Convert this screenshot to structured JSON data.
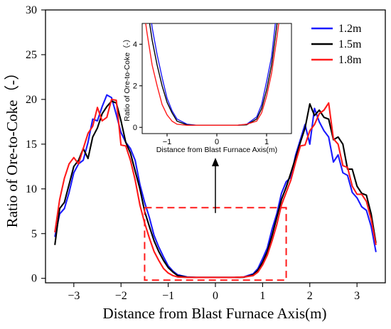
{
  "chart_data": {
    "type": "line",
    "xlabel": "Distance from Blast Furnace Axis(m)",
    "ylabel": "Ratio of Ore-to-Coke（-）",
    "xlim": [
      -3.6,
      3.6
    ],
    "ylim": [
      -0.5,
      30
    ],
    "xticks": [
      "−3",
      "−2",
      "−1",
      "0",
      "1",
      "2",
      "3"
    ],
    "yticks": [
      "0",
      "5",
      "10",
      "15",
      "20",
      "25",
      "30"
    ],
    "legend_position": "top-right",
    "grid": false,
    "series": [
      {
        "name": "1.2m",
        "color": "#1a1aff",
        "x": [
          -3.4,
          -3.3,
          -3.2,
          -3.1,
          -3.0,
          -2.9,
          -2.8,
          -2.7,
          -2.6,
          -2.5,
          -2.4,
          -2.3,
          -2.2,
          -2.1,
          -2.0,
          -1.9,
          -1.8,
          -1.7,
          -1.6,
          -1.5,
          -1.4,
          -1.3,
          -1.2,
          -1.1,
          -1.0,
          -0.9,
          -0.8,
          -0.6,
          -0.4,
          -0.2,
          0.0,
          0.2,
          0.4,
          0.6,
          0.8,
          0.9,
          1.0,
          1.1,
          1.2,
          1.3,
          1.4,
          1.5,
          1.6,
          1.7,
          1.8,
          1.9,
          2.0,
          2.1,
          2.2,
          2.3,
          2.4,
          2.5,
          2.6,
          2.7,
          2.8,
          2.9,
          3.0,
          3.1,
          3.2,
          3.3,
          3.4
        ],
        "y": [
          4.7,
          7.2,
          7.8,
          9.6,
          11.8,
          12.8,
          13.2,
          15.2,
          17.8,
          17.6,
          19.2,
          20.5,
          20.2,
          18.3,
          16.3,
          15.2,
          14.5,
          13.2,
          10.5,
          8.5,
          6.8,
          4.8,
          3.5,
          2.4,
          1.4,
          0.8,
          0.4,
          0.15,
          0.1,
          0.1,
          0.1,
          0.1,
          0.1,
          0.15,
          0.5,
          1.1,
          2.2,
          3.4,
          5.5,
          7.2,
          9.5,
          10.8,
          11.3,
          13.8,
          15.5,
          17.2,
          15.0,
          19.0,
          17.5,
          16.5,
          15.8,
          13.0,
          13.8,
          11.8,
          11.5,
          9.6,
          9.0,
          8.0,
          7.6,
          5.8,
          3.0
        ]
      },
      {
        "name": "1.5m",
        "color": "#000000",
        "x": [
          -3.4,
          -3.3,
          -3.2,
          -3.1,
          -3.0,
          -2.9,
          -2.8,
          -2.7,
          -2.6,
          -2.5,
          -2.4,
          -2.3,
          -2.2,
          -2.1,
          -2.0,
          -1.9,
          -1.8,
          -1.7,
          -1.6,
          -1.5,
          -1.4,
          -1.3,
          -1.2,
          -1.1,
          -1.0,
          -0.9,
          -0.8,
          -0.6,
          -0.4,
          -0.2,
          0.0,
          0.2,
          0.4,
          0.6,
          0.8,
          0.9,
          1.0,
          1.1,
          1.2,
          1.3,
          1.4,
          1.5,
          1.6,
          1.7,
          1.8,
          1.9,
          2.0,
          2.1,
          2.2,
          2.3,
          2.4,
          2.5,
          2.6,
          2.7,
          2.8,
          2.9,
          3.0,
          3.1,
          3.2,
          3.3,
          3.4
        ],
        "y": [
          3.8,
          7.8,
          8.5,
          10.5,
          12.5,
          13.2,
          14.5,
          13.4,
          15.8,
          16.8,
          18.4,
          19.2,
          19.8,
          19.6,
          17.6,
          15.2,
          14.0,
          12.0,
          10.0,
          7.5,
          5.8,
          4.2,
          3.0,
          2.0,
          1.2,
          0.7,
          0.3,
          0.12,
          0.1,
          0.1,
          0.1,
          0.1,
          0.1,
          0.12,
          0.4,
          0.9,
          1.8,
          3.0,
          4.8,
          6.8,
          8.8,
          10.2,
          11.8,
          13.5,
          15.2,
          16.8,
          19.5,
          18.2,
          18.8,
          18.0,
          17.8,
          15.5,
          15.8,
          15.0,
          12.2,
          12.2,
          10.3,
          9.5,
          9.3,
          7.2,
          4.0
        ]
      },
      {
        "name": "1.8m",
        "color": "#ff1a1a",
        "x": [
          -3.4,
          -3.3,
          -3.2,
          -3.1,
          -3.0,
          -2.9,
          -2.8,
          -2.7,
          -2.6,
          -2.5,
          -2.4,
          -2.3,
          -2.2,
          -2.1,
          -2.0,
          -1.9,
          -1.8,
          -1.7,
          -1.6,
          -1.5,
          -1.4,
          -1.3,
          -1.2,
          -1.1,
          -1.0,
          -0.9,
          -0.8,
          -0.6,
          -0.4,
          -0.2,
          0.0,
          0.2,
          0.4,
          0.6,
          0.8,
          0.9,
          1.0,
          1.1,
          1.2,
          1.3,
          1.4,
          1.5,
          1.6,
          1.7,
          1.8,
          1.9,
          2.0,
          2.1,
          2.2,
          2.3,
          2.4,
          2.5,
          2.6,
          2.7,
          2.8,
          2.9,
          3.0,
          3.1,
          3.2,
          3.3,
          3.4
        ],
        "y": [
          5.2,
          8.8,
          11.2,
          12.8,
          13.5,
          12.8,
          14.5,
          16.2,
          17.0,
          19.1,
          17.6,
          18.0,
          20.0,
          19.9,
          14.9,
          14.8,
          13.2,
          11.0,
          8.2,
          6.2,
          4.5,
          3.0,
          2.0,
          1.1,
          0.6,
          0.3,
          0.15,
          0.1,
          0.1,
          0.1,
          0.1,
          0.1,
          0.1,
          0.15,
          0.3,
          0.7,
          1.5,
          2.6,
          4.2,
          6.0,
          8.2,
          9.6,
          11.0,
          13.0,
          14.8,
          14.9,
          16.5,
          17.2,
          18.4,
          18.8,
          19.6,
          15.6,
          15.0,
          12.6,
          12.4,
          10.3,
          9.4,
          9.4,
          8.6,
          6.6,
          3.8
        ]
      }
    ],
    "highlight_box": {
      "x": [
        -1.5,
        1.5
      ],
      "y": [
        -0.2,
        7.9
      ]
    },
    "arrow": {
      "x": 0,
      "y_from": 7.3,
      "y_to": 12.8
    },
    "inset": {
      "xlabel": "Distance from Blast Furnace Axis(m)",
      "ylabel": "Ratio of Ore-to-Coke（-）",
      "xlim": [
        -1.5,
        1.5
      ],
      "ylim": [
        -0.3,
        5.0
      ],
      "xticks": [
        "−1",
        "0",
        "1"
      ],
      "yticks": [
        "0",
        "2",
        "4"
      ]
    }
  }
}
